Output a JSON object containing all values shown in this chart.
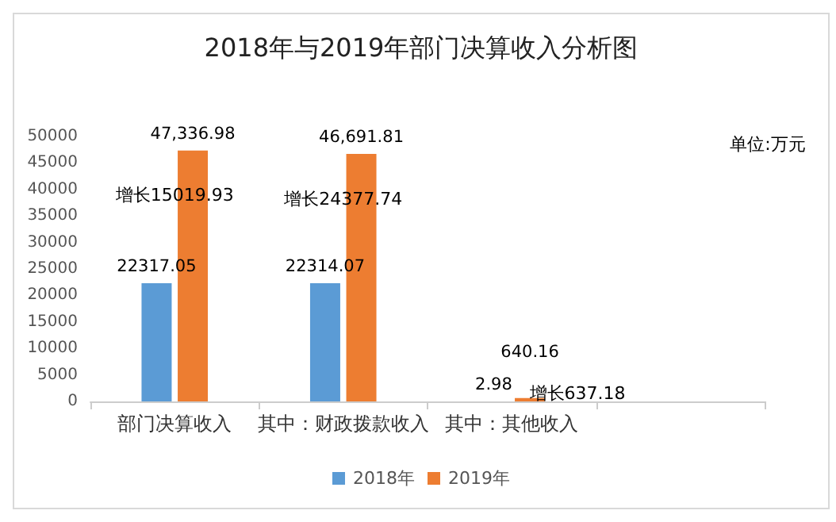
{
  "chart_data": {
    "type": "bar",
    "title": "2018年与2019年部门决算收入分析图",
    "categories": [
      "部门决算收入",
      "其中：财政拨款收入",
      "其中：其他收入",
      null
    ],
    "series": [
      {
        "name": "2018年",
        "color": "#5b9bd5",
        "values": [
          22317.05,
          22314.07,
          2.98,
          null
        ],
        "value_labels": [
          "22317.05",
          "22314.07",
          "2.98",
          null
        ]
      },
      {
        "name": "2019年",
        "color": "#ed7d31",
        "values": [
          47336.98,
          46691.81,
          640.16,
          null
        ],
        "value_labels": [
          "47,336.98",
          "46,691.81",
          "640.16",
          null
        ]
      }
    ],
    "ylim": [
      0,
      50000
    ],
    "yticks": [
      0,
      5000,
      10000,
      15000,
      20000,
      25000,
      30000,
      35000,
      40000,
      45000,
      50000
    ],
    "grid": false,
    "legend": "bottom",
    "annotations": [
      "单位:万元",
      {
        "text": "增长15019.93",
        "x": "部门决算收入",
        "y": 38900
      },
      {
        "text": "增长24377.74",
        "x": "其中：财政拨款收入",
        "y": 38100
      },
      "增长637.18"
    ]
  }
}
